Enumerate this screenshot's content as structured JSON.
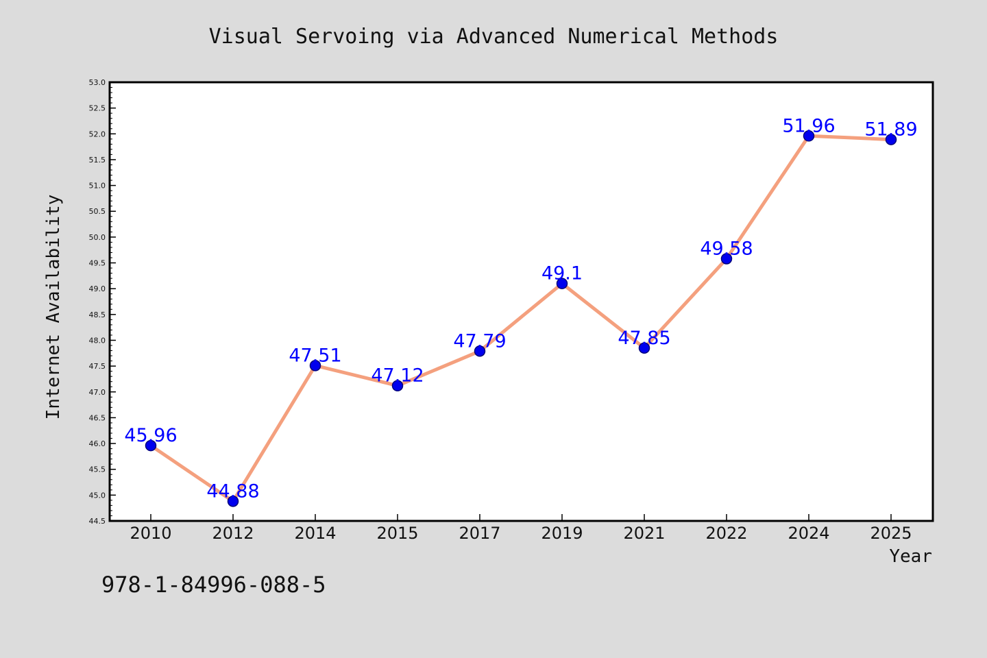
{
  "chart_data": {
    "type": "line",
    "title": "Visual Servoing via Advanced Numerical Methods",
    "xlabel": "Year",
    "ylabel": "Internet Availability",
    "categories": [
      "2010",
      "2012",
      "2014",
      "2015",
      "2017",
      "2019",
      "2021",
      "2022",
      "2024",
      "2025"
    ],
    "series": [
      {
        "values": [
          45.96,
          44.88,
          47.51,
          47.12,
          47.79,
          49.1,
          47.85,
          49.58,
          51.96,
          51.89
        ]
      }
    ],
    "data_labels": [
      "45.96",
      "44.88",
      "47.51",
      "47.12",
      "47.79",
      "49.1",
      "47.85",
      "49.58",
      "51.96",
      "51.89"
    ],
    "ylim": [
      44.5,
      53.0
    ],
    "yticks": [
      "44.5",
      "45.0",
      "45.5",
      "46.0",
      "46.5",
      "47.0",
      "47.5",
      "48.0",
      "48.5",
      "49.0",
      "49.5",
      "50.0",
      "50.5",
      "51.0",
      "51.5",
      "52.0",
      "52.5",
      "53.0"
    ],
    "grid": false,
    "legend": "none",
    "line_color": "#f4a07e",
    "marker_color": "#0000ee",
    "label_color": "#0000ff",
    "plot_background": "#ffffff",
    "figure_background": "#dcdcdc"
  },
  "footnote": "978-1-84996-088-5"
}
